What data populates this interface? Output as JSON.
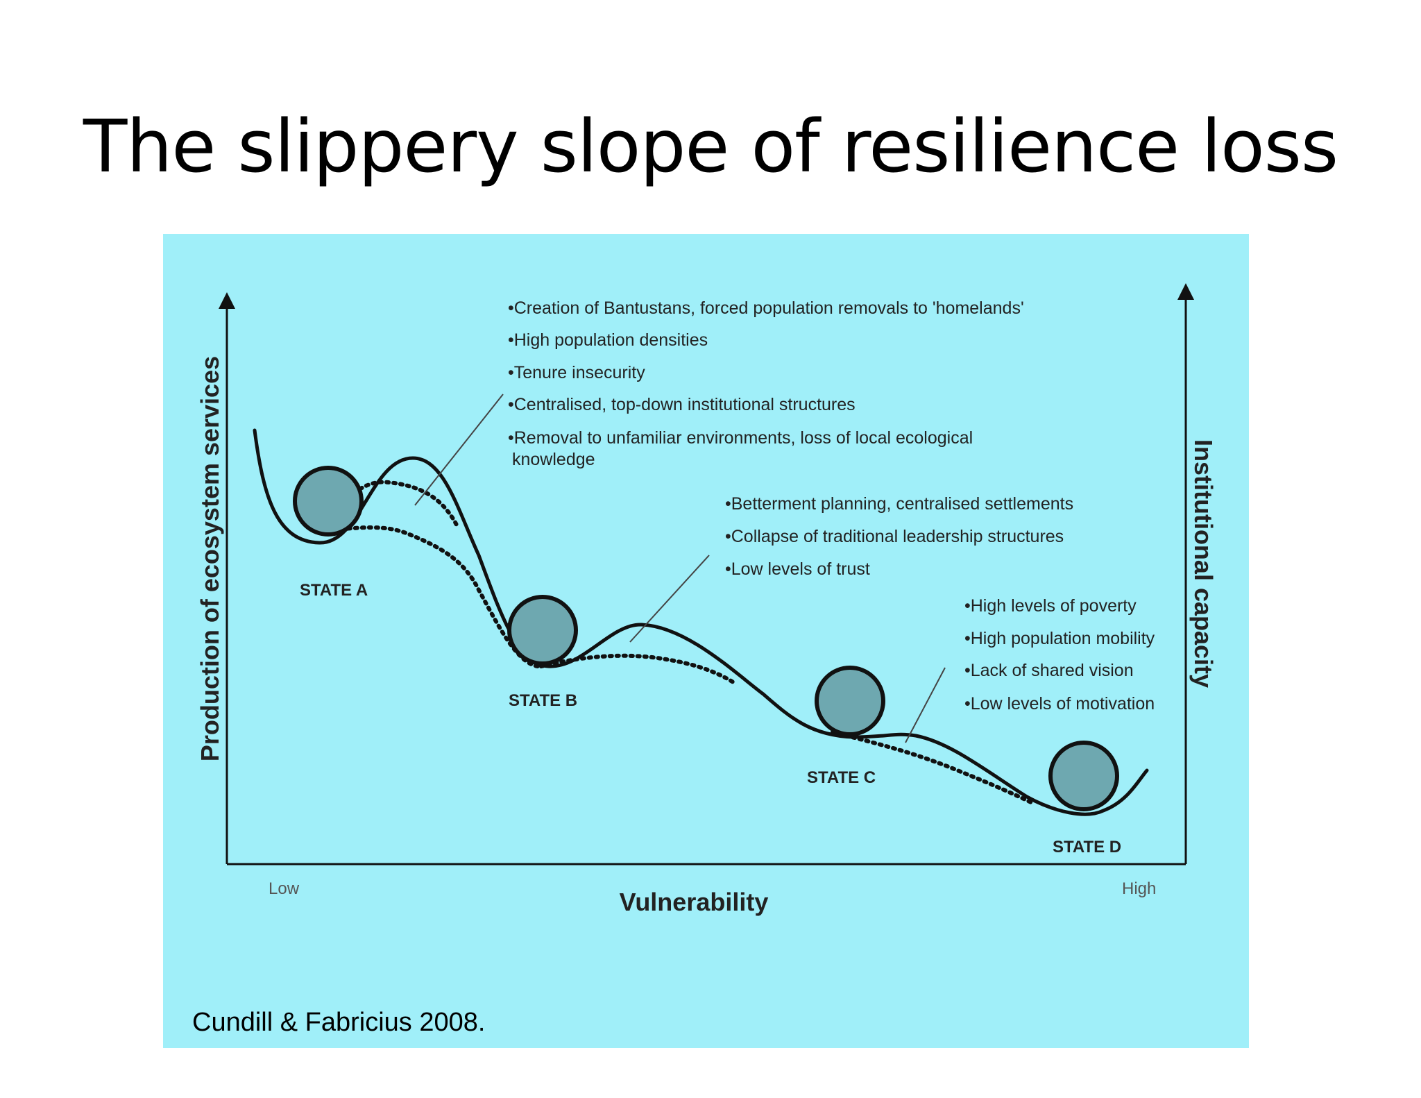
{
  "title": "The slippery slope of resilience loss",
  "colors": {
    "panel_background": "#a0eff9",
    "ball_fill": "#6ea8b0",
    "line": "#111111"
  },
  "axes": {
    "y_left_label": "Production of ecosystem services",
    "y_right_label": "Institutional capacity",
    "x_label": "Vulnerability",
    "x_low": "Low",
    "x_high": "High"
  },
  "states": [
    "STATE A",
    "STATE B",
    "STATE C",
    "STATE D"
  ],
  "drivers": {
    "group_1": [
      "•Creation of Bantustans, forced population removals to 'homelands'",
      "•High population densities",
      "•Tenure insecurity",
      "•Centralised, top-down institutional structures",
      "•Removal to unfamiliar environments, loss of local ecological",
      "knowledge"
    ],
    "group_2": [
      "•Betterment planning, centralised settlements",
      "•Collapse of traditional leadership structures",
      "•Low levels of trust"
    ],
    "group_3": [
      "•High levels of poverty",
      "•High population mobility",
      "•Lack of shared vision",
      "•Low levels of motivation"
    ]
  },
  "citation": "Cundill & Fabricius 2008."
}
